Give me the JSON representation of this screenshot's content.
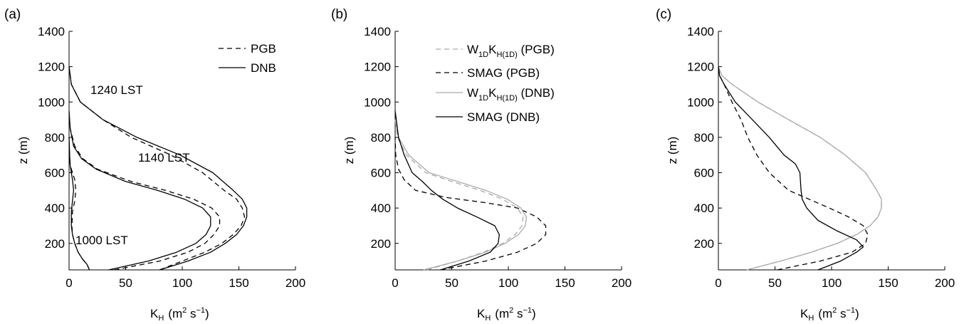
{
  "chart_data": [
    {
      "type": "line",
      "panel_label": "(a)",
      "xlabel_main": "K",
      "xlabel_sub": "H",
      "xlabel_units": "(m",
      "xlabel_sup1": "2",
      "xlabel_mid": " s",
      "xlabel_sup2": "−1",
      "xlabel_end": ")",
      "ylabel": "z (m)",
      "xlim": [
        0,
        200
      ],
      "ylim": [
        50,
        1400
      ],
      "xticks": [
        "0",
        "50",
        "100",
        "150",
        "200"
      ],
      "yticks": [
        "200",
        "400",
        "600",
        "800",
        "1000",
        "1200",
        "1400"
      ],
      "legend": [
        {
          "label": "PGB",
          "style": "dashed",
          "color": "#000000"
        },
        {
          "label": "DNB",
          "style": "solid",
          "color": "#000000"
        }
      ],
      "annotations": [
        {
          "text": "1240 LST",
          "x": 20,
          "y": 1080
        },
        {
          "text": "1140 LST",
          "x": 63,
          "y": 650
        },
        {
          "text": "1000 LST",
          "x": 4,
          "y": 205
        }
      ],
      "series": [
        {
          "style": "dashed",
          "color": "#000000",
          "x": [
            18,
            16,
            12,
            8,
            5,
            3,
            2.5,
            3,
            5,
            6,
            5,
            3,
            1,
            0.5,
            0
          ],
          "y": [
            50,
            80,
            110,
            150,
            200,
            250,
            300,
            380,
            440,
            500,
            560,
            600,
            640,
            700,
            800
          ]
        },
        {
          "style": "solid",
          "color": "#000000",
          "x": [
            18,
            16,
            12,
            8,
            5,
            3,
            2,
            2,
            3,
            4,
            3,
            2,
            1,
            0.5,
            0
          ],
          "y": [
            50,
            80,
            110,
            150,
            200,
            250,
            300,
            380,
            440,
            500,
            560,
            600,
            640,
            700,
            800
          ]
        },
        {
          "style": "dashed",
          "color": "#000000",
          "x": [
            40,
            80,
            105,
            120,
            128,
            133,
            133,
            126,
            110,
            85,
            55,
            25,
            12,
            5,
            1,
            0
          ],
          "y": [
            50,
            100,
            150,
            200,
            250,
            300,
            350,
            400,
            450,
            500,
            550,
            620,
            680,
            750,
            850,
            930
          ]
        },
        {
          "style": "solid",
          "color": "#000000",
          "x": [
            35,
            70,
            95,
            112,
            121,
            125,
            125,
            118,
            102,
            78,
            50,
            24,
            11,
            4,
            1,
            0
          ],
          "y": [
            50,
            100,
            150,
            200,
            250,
            300,
            350,
            400,
            450,
            500,
            550,
            620,
            680,
            750,
            850,
            950
          ]
        },
        {
          "style": "dashed",
          "color": "#000000",
          "x": [
            80,
            100,
            120,
            135,
            145,
            152,
            155,
            153,
            148,
            137,
            118,
            90,
            55,
            30,
            10,
            2,
            0
          ],
          "y": [
            50,
            100,
            150,
            200,
            250,
            300,
            350,
            400,
            450,
            500,
            600,
            700,
            800,
            900,
            1000,
            1100,
            1200
          ]
        },
        {
          "style": "solid",
          "color": "#000000",
          "x": [
            80,
            105,
            125,
            138,
            148,
            154,
            157,
            157,
            153,
            145,
            127,
            98,
            60,
            30,
            10,
            2,
            0
          ],
          "y": [
            50,
            100,
            150,
            200,
            250,
            300,
            350,
            400,
            450,
            500,
            600,
            700,
            800,
            900,
            1000,
            1100,
            1200
          ]
        }
      ]
    },
    {
      "type": "line",
      "panel_label": "(b)",
      "xlabel_main": "K",
      "xlabel_sub": "H",
      "xlabel_units": "(m",
      "xlabel_sup1": "2",
      "xlabel_mid": " s",
      "xlabel_sup2": "−1",
      "xlabel_end": ")",
      "ylabel": "z (m)",
      "xlim": [
        0,
        200
      ],
      "ylim": [
        50,
        1400
      ],
      "xticks": [
        "0",
        "50",
        "100",
        "150",
        "200"
      ],
      "yticks": [
        "200",
        "400",
        "600",
        "800",
        "1000",
        "1200",
        "1400"
      ],
      "legend": [
        {
          "label_main": "W",
          "label_sub1": "1D",
          "label_main2": "K",
          "label_sub2": "H(1D)",
          "label_tail": " (PGB)",
          "style": "dashed",
          "color": "#aaaaaa"
        },
        {
          "label": "SMAG (PGB)",
          "style": "dashed",
          "color": "#000000"
        },
        {
          "label_main": "W",
          "label_sub1": "1D",
          "label_main2": "K",
          "label_sub2": "H(1D)",
          "label_tail": " (DNB)",
          "style": "solid",
          "color": "#aaaaaa"
        },
        {
          "label": "SMAG (DNB)",
          "style": "solid",
          "color": "#000000"
        }
      ],
      "series": [
        {
          "style": "dashed",
          "color": "#aaaaaa",
          "x": [
            28,
            55,
            78,
            95,
            106,
            112,
            113,
            108,
            95,
            75,
            50,
            27,
            10,
            2,
            0
          ],
          "y": [
            50,
            100,
            150,
            200,
            250,
            300,
            350,
            400,
            450,
            500,
            550,
            600,
            700,
            800,
            900
          ]
        },
        {
          "style": "dashed",
          "color": "#000000",
          "x": [
            40,
            80,
            108,
            125,
            133,
            133,
            125,
            108,
            80,
            45,
            18,
            8,
            3,
            0.5,
            0
          ],
          "y": [
            50,
            100,
            150,
            200,
            250,
            300,
            350,
            400,
            430,
            460,
            500,
            560,
            620,
            700,
            800
          ]
        },
        {
          "style": "solid",
          "color": "#aaaaaa",
          "x": [
            25,
            55,
            80,
            97,
            109,
            115,
            116,
            111,
            99,
            80,
            55,
            30,
            12,
            3,
            0
          ],
          "y": [
            50,
            100,
            150,
            200,
            250,
            300,
            350,
            400,
            450,
            500,
            550,
            600,
            700,
            800,
            900
          ]
        },
        {
          "style": "solid",
          "color": "#000000",
          "x": [
            40,
            65,
            84,
            91,
            92,
            88,
            72,
            55,
            42,
            32,
            24,
            15,
            8,
            3,
            1,
            0
          ],
          "y": [
            50,
            100,
            150,
            200,
            250,
            300,
            350,
            400,
            450,
            500,
            550,
            600,
            700,
            800,
            900,
            950
          ]
        }
      ]
    },
    {
      "type": "line",
      "panel_label": "(c)",
      "xlabel_main": "K",
      "xlabel_sub": "H",
      "xlabel_units": "(m",
      "xlabel_sup1": "2",
      "xlabel_mid": " s",
      "xlabel_sup2": "−1",
      "xlabel_end": ")",
      "ylabel": "z (m)",
      "xlim": [
        0,
        200
      ],
      "ylim": [
        50,
        1400
      ],
      "xticks": [
        "0",
        "50",
        "100",
        "150",
        "200"
      ],
      "yticks": [
        "200",
        "400",
        "600",
        "800",
        "1000",
        "1200",
        "1400"
      ],
      "series": [
        {
          "style": "dashed",
          "color": "#aaaaaa",
          "x": [
            25,
            55,
            82,
            105,
            122,
            134,
            141,
            144,
            144,
            140,
            130,
            112,
            90,
            62,
            35,
            12,
            3,
            0
          ],
          "y": [
            50,
            100,
            150,
            200,
            250,
            300,
            350,
            400,
            450,
            500,
            600,
            700,
            800,
            900,
            1000,
            1100,
            1150,
            1200
          ]
        },
        {
          "style": "solid",
          "color": "#aaaaaa",
          "x": [
            25,
            55,
            82,
            105,
            122,
            134,
            141,
            144,
            144,
            140,
            130,
            112,
            90,
            62,
            35,
            12,
            3,
            0
          ],
          "y": [
            50,
            100,
            150,
            200,
            250,
            300,
            350,
            400,
            450,
            500,
            600,
            700,
            800,
            900,
            1000,
            1100,
            1150,
            1200
          ]
        },
        {
          "style": "dashed",
          "color": "#000000",
          "x": [
            52,
            90,
            118,
            130,
            132,
            128,
            115,
            98,
            80,
            62,
            45,
            34,
            26,
            20,
            12,
            5,
            1,
            0
          ],
          "y": [
            50,
            100,
            150,
            200,
            250,
            300,
            350,
            400,
            450,
            500,
            600,
            700,
            800,
            900,
            1000,
            1100,
            1150,
            1200
          ]
        },
        {
          "style": "solid",
          "color": "#000000",
          "x": [
            88,
            108,
            122,
            128,
            122,
            105,
            88,
            78,
            74,
            73,
            72,
            68,
            58,
            45,
            30,
            15,
            5,
            1,
            0
          ],
          "y": [
            50,
            100,
            150,
            180,
            220,
            270,
            330,
            400,
            450,
            500,
            600,
            650,
            700,
            800,
            900,
            1000,
            1100,
            1150,
            1200
          ]
        }
      ]
    }
  ]
}
